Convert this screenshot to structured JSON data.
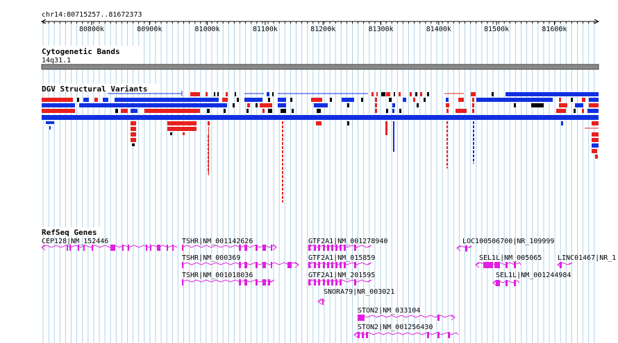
{
  "region": "chr14:80715257..81672373",
  "ruler": {
    "ticks": [
      "80800k",
      "80900k",
      "81000k",
      "81100k",
      "81200k",
      "81300k",
      "81400k",
      "81500k",
      "81600k"
    ]
  },
  "tracks": {
    "cytoband": {
      "title": "Cytogenetic Bands",
      "band": "14q31.1"
    },
    "dgv": {
      "title": "DGV Structural Variants"
    },
    "refseq": {
      "title": "RefSeq Genes",
      "genes": [
        "CEP128|NM_152446",
        "TSHR|NM_001142626",
        "TSHR|NM_000369",
        "TSHR|NM_001018036",
        "GTF2A1|NM_001278940",
        "GTF2A1|NM_015859",
        "GTF2A1|NM_201595",
        "SNORA79|NR_003021",
        "STON2|NM_033104",
        "STON2|NM_001256430",
        "LOC100506700|NR_109999",
        "SEL1L|NM_005065",
        "SEL1L|NM_001244984",
        "LINC01467|NR_1"
      ]
    }
  },
  "colors": {
    "loss": "#e8201e",
    "gain": "#1030e0",
    "gene": "#e020e0",
    "grid": "#aed4e8",
    "band": "#888888"
  }
}
